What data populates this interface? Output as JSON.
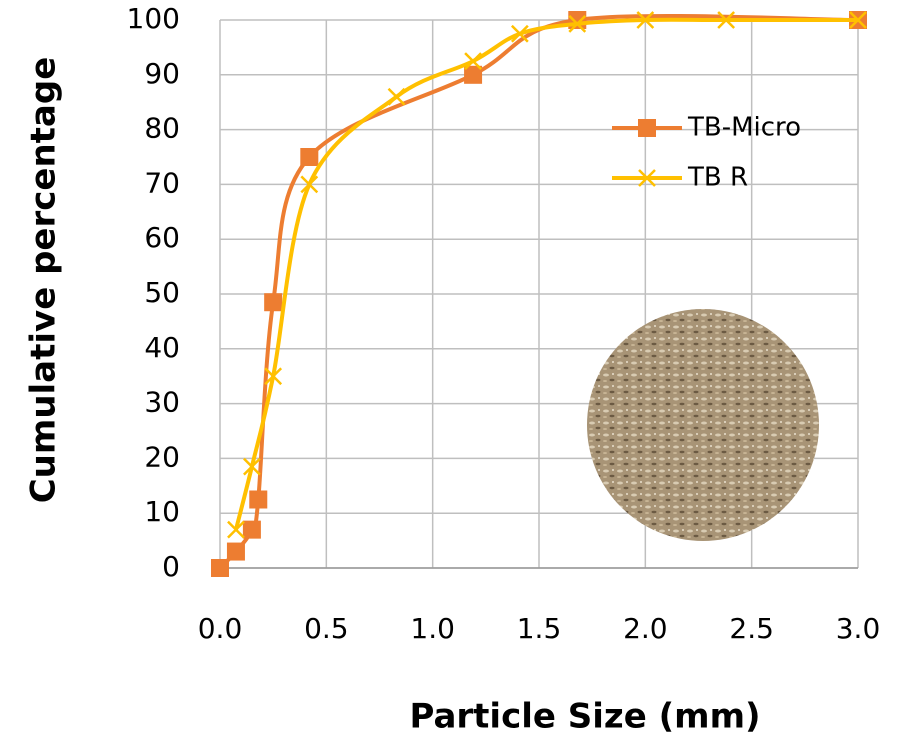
{
  "chart_data": {
    "type": "line",
    "x_label": "Particle Size (mm)",
    "y_label": "Cumulative percentage",
    "xlim": [
      0,
      3
    ],
    "xticks": [
      {
        "value": 0,
        "label": "0.0"
      },
      0.5,
      {
        "value": 1,
        "label": "1.0"
      },
      1.5,
      {
        "value": 2,
        "label": "2.0"
      },
      2.5,
      {
        "value": 3,
        "label": "3.0"
      }
    ],
    "ylim": [
      0,
      100
    ],
    "yticks": [
      0,
      10,
      20,
      30,
      40,
      50,
      60,
      70,
      80,
      90,
      100
    ],
    "grid": true,
    "legend": "upper right",
    "series": [
      {
        "name": "TB-Micro",
        "color": "#ED7D31",
        "marker": "square",
        "x": [
          0,
          0.075,
          0.15,
          0.18,
          0.25,
          0.42,
          1.19,
          1.68,
          3.0
        ],
        "values": [
          0,
          3,
          7,
          12.5,
          48.5,
          75,
          90,
          100,
          100
        ]
      },
      {
        "name": "TB R",
        "color": "#FFC000",
        "marker": "x",
        "x": [
          0.075,
          0.15,
          0.25,
          0.42,
          0.83,
          1.19,
          1.41,
          1.68,
          2.0,
          2.38,
          3.0
        ],
        "values": [
          7,
          18.5,
          35,
          70,
          86,
          92.5,
          97.5,
          99.3,
          100,
          100,
          100
        ]
      }
    ]
  }
}
